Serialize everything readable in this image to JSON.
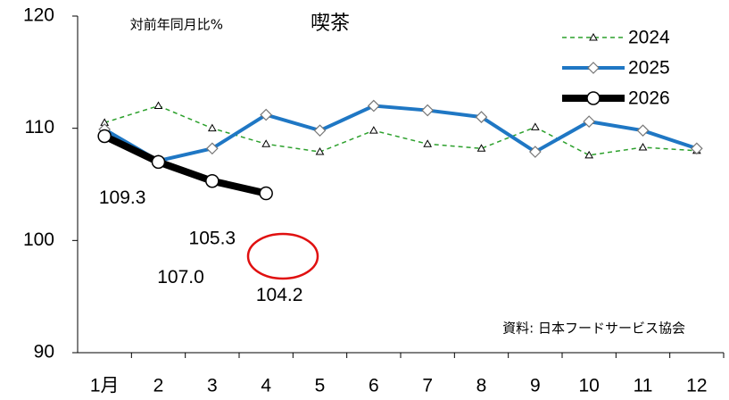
{
  "chart_data": {
    "type": "line",
    "title": "喫茶",
    "ylabel": "対前年同月比%",
    "annotation": "資料: 日本フードサービス協会",
    "categories": [
      "1月",
      "2",
      "3",
      "4",
      "5",
      "6",
      "7",
      "8",
      "9",
      "10",
      "11",
      "12"
    ],
    "ylim": [
      90,
      120
    ],
    "yticks": [
      90,
      100,
      110,
      120
    ],
    "series": [
      {
        "name": "2024",
        "color": "#2ca02c",
        "values": [
          110.5,
          112.0,
          110.0,
          108.6,
          107.9,
          109.8,
          108.6,
          108.2,
          110.1,
          107.6,
          108.3,
          108.0
        ]
      },
      {
        "name": "2025",
        "color": "#1f77c4",
        "values": [
          109.9,
          107.1,
          108.2,
          111.2,
          109.8,
          112.0,
          111.6,
          111.0,
          107.9,
          110.6,
          109.8,
          108.2
        ]
      },
      {
        "name": "2026",
        "color": "#000000",
        "values": [
          109.3,
          107.0,
          105.3,
          104.2,
          null,
          null,
          null,
          null,
          null,
          null,
          null,
          null
        ],
        "value_labels": [
          "109.3",
          "107.0",
          "105.3",
          "104.2",
          null,
          null,
          null,
          null,
          null,
          null,
          null,
          null
        ]
      }
    ]
  }
}
